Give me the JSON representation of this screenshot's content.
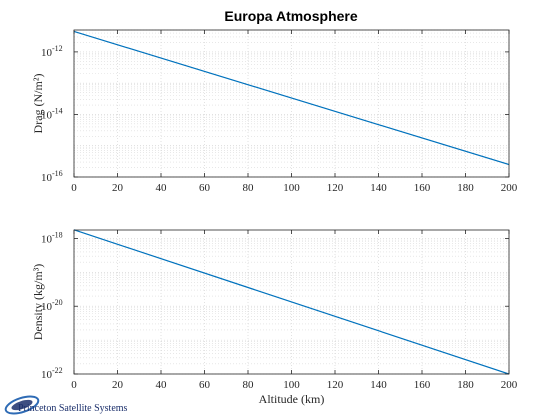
{
  "chart_data": [
    {
      "type": "line",
      "title": "Europa Atmosphere",
      "ylabel": "Drag (N/m²)",
      "xlabel": "",
      "yscale": "log",
      "xlim": [
        0,
        200
      ],
      "ylim_exp": [
        -16,
        -11.3
      ],
      "x_ticks": [
        0,
        20,
        40,
        60,
        80,
        100,
        120,
        140,
        160,
        180,
        200
      ],
      "y_ticks": [
        {
          "base": "10",
          "exp": "-16",
          "value": -16
        },
        {
          "base": "10",
          "exp": "-14",
          "value": -14
        },
        {
          "base": "10",
          "exp": "-12",
          "value": -12
        }
      ],
      "grid": true,
      "minor_grid": true,
      "series": [
        {
          "x": [
            0,
            200
          ],
          "y": [
            4.5e-12,
            2.5e-16
          ],
          "color": "#0072bd"
        }
      ]
    },
    {
      "type": "line",
      "ylabel": "Density (kg/m³)",
      "xlabel": "Altitude (km)",
      "yscale": "log",
      "xlim": [
        0,
        200
      ],
      "ylim_exp": [
        -22,
        -17.75
      ],
      "x_ticks": [
        0,
        20,
        40,
        60,
        80,
        100,
        120,
        140,
        160,
        180,
        200
      ],
      "y_ticks": [
        {
          "base": "10",
          "exp": "-22",
          "value": -22
        },
        {
          "base": "10",
          "exp": "-20",
          "value": -20
        },
        {
          "base": "10",
          "exp": "-18",
          "value": -18
        }
      ],
      "grid": true,
      "minor_grid": true,
      "series": [
        {
          "x": [
            0,
            200
          ],
          "y": [
            1.8e-18,
            1e-22
          ],
          "color": "#0072bd"
        }
      ]
    }
  ],
  "logo": {
    "text": "Princeton Satellite Systems",
    "colors": {
      "navy": "#1b2f6b",
      "blue": "#2e6bb5"
    }
  }
}
